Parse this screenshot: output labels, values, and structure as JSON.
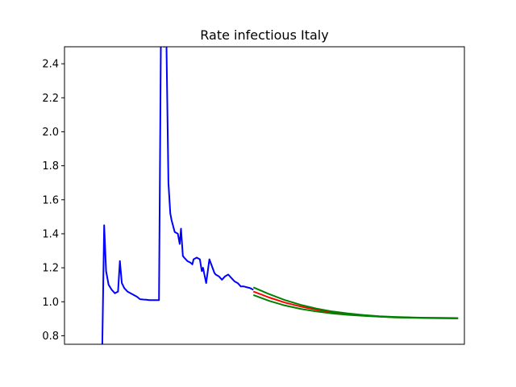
{
  "chart_data": {
    "type": "line",
    "title": "Rate infectious Italy",
    "xlabel": "",
    "ylabel": "",
    "ylim": [
      0.75,
      2.5
    ],
    "xlim": [
      0,
      127
    ],
    "x_ticks_visible": false,
    "y_ticks": [
      "0.8",
      "1.0",
      "1.2",
      "1.4",
      "1.6",
      "1.8",
      "2.0",
      "2.2",
      "2.4"
    ],
    "grid": false,
    "series": [
      {
        "color": "#0000ff",
        "x": [
          12,
          12.6,
          13.2,
          14,
          15,
          16,
          17,
          17.6,
          18.2,
          19,
          20,
          21,
          22,
          23,
          24,
          25,
          26,
          27,
          28,
          29,
          30,
          30.6,
          31,
          31.6,
          32,
          33,
          33.6,
          34,
          35,
          36,
          36.6,
          37,
          37.6,
          38,
          39,
          40,
          40.6,
          41,
          42,
          43,
          43.6,
          44,
          45,
          46,
          46.6,
          47,
          47.6,
          48,
          49,
          50,
          51,
          52,
          53,
          54,
          55,
          56,
          57,
          58,
          59,
          60
        ],
        "y": [
          0.75,
          1.45,
          1.18,
          1.1,
          1.07,
          1.05,
          1.06,
          1.24,
          1.11,
          1.08,
          1.06,
          1.05,
          1.04,
          1.03,
          1.015,
          1.013,
          1.012,
          1.01,
          1.01,
          1.01,
          1.01,
          2.5,
          3.2,
          2.5,
          3.0,
          1.7,
          1.52,
          1.48,
          1.41,
          1.4,
          1.34,
          1.43,
          1.27,
          1.26,
          1.24,
          1.23,
          1.22,
          1.25,
          1.26,
          1.25,
          1.18,
          1.2,
          1.11,
          1.25,
          1.22,
          1.2,
          1.17,
          1.16,
          1.15,
          1.13,
          1.15,
          1.16,
          1.14,
          1.12,
          1.11,
          1.09,
          1.09,
          1.085,
          1.08,
          1.07
        ]
      },
      {
        "color": "#ff0000",
        "x": [
          60,
          65,
          70,
          75,
          80,
          85,
          90,
          95,
          100,
          105,
          110,
          115,
          120,
          125
        ],
        "y": [
          1.06,
          1.025,
          0.995,
          0.972,
          0.953,
          0.938,
          0.927,
          0.919,
          0.913,
          0.909,
          0.907,
          0.905,
          0.904,
          0.903
        ]
      },
      {
        "color": "#008000",
        "x": [
          60,
          65,
          70,
          75,
          80,
          85,
          90,
          95,
          100,
          105,
          110,
          115,
          120,
          125
        ],
        "y": [
          1.085,
          1.045,
          1.01,
          0.982,
          0.96,
          0.943,
          0.931,
          0.922,
          0.915,
          0.911,
          0.908,
          0.906,
          0.905,
          0.904
        ]
      },
      {
        "color": "#008000",
        "x": [
          60,
          65,
          70,
          75,
          80,
          85,
          90,
          95,
          100,
          105,
          110,
          115,
          120,
          125
        ],
        "y": [
          1.04,
          1.005,
          0.978,
          0.958,
          0.943,
          0.931,
          0.923,
          0.917,
          0.912,
          0.908,
          0.906,
          0.904,
          0.903,
          0.902
        ]
      }
    ]
  }
}
